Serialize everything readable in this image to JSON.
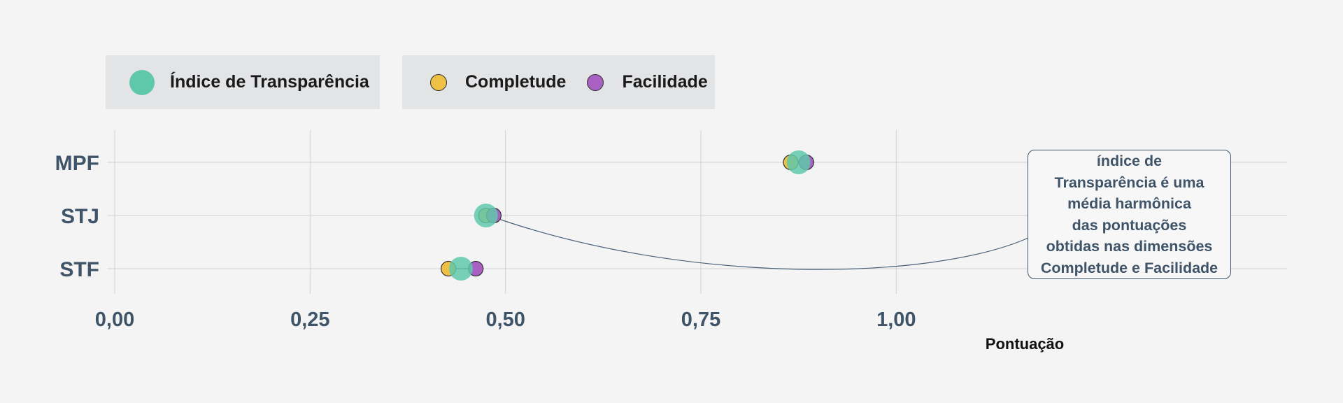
{
  "legend": {
    "group1": [
      {
        "label": "Índice de Transparência",
        "color": "#5fc8aa"
      }
    ],
    "group2": [
      {
        "label": "Completude",
        "color": "#eec145"
      },
      {
        "label": "Facilidade",
        "color": "#a860c2"
      }
    ]
  },
  "annotation": {
    "text": "índice de\nTransparência é uma\nmédia harmônica\ndas pontuações\nobtidas nas dimensões\nCompletude e Facilidade"
  },
  "chart_data": {
    "type": "scatter",
    "title": "",
    "xlabel": "Pontuação",
    "ylabel": "",
    "xlim": [
      0,
      1.5
    ],
    "x_ticks": [
      {
        "value": 0,
        "label": "0,00"
      },
      {
        "value": 0.25,
        "label": "0,25"
      },
      {
        "value": 0.5,
        "label": "0,50"
      },
      {
        "value": 0.75,
        "label": "0,75"
      },
      {
        "value": 1.0,
        "label": "1,00"
      }
    ],
    "categories": [
      "MPF",
      "STJ",
      "STF"
    ],
    "series": [
      {
        "name": "Índice de Transparência",
        "color": "#5fc8aa",
        "values": [
          0.875,
          0.475,
          0.443
        ]
      },
      {
        "name": "Completude",
        "color": "#eec145",
        "values": [
          0.865,
          0.475,
          0.427
        ]
      },
      {
        "name": "Facilidade",
        "color": "#a860c2",
        "values": [
          0.885,
          0.485,
          0.462
        ]
      }
    ],
    "grid": true,
    "legend_position": "top-left",
    "annotation_target": {
      "category": "STJ",
      "x": 0.475
    }
  }
}
